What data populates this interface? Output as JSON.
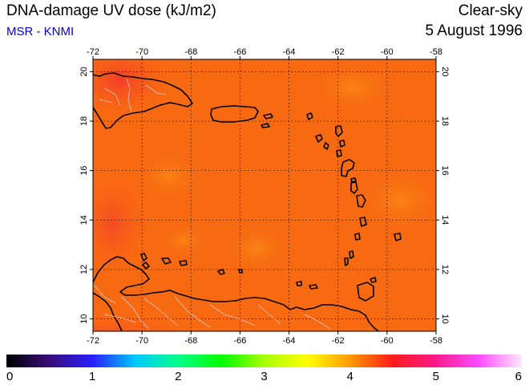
{
  "header": {
    "title": "DNA-damage UV dose (kJ/m2)",
    "subtitle": "MSR - KNMI",
    "condition": "Clear-sky",
    "date": "5 August 1996"
  },
  "map": {
    "lon_range": [
      -72,
      -58
    ],
    "lat_range": [
      9.5,
      20.5
    ],
    "lon_ticks": [
      "-72",
      "-70",
      "-68",
      "-66",
      "-64",
      "-62",
      "-60",
      "-58"
    ],
    "lat_ticks": [
      "10",
      "12",
      "14",
      "16",
      "18",
      "20"
    ],
    "field_colors": {
      "background": "#f86a12",
      "high": "#ee1a3c",
      "low": "#fb8a14"
    }
  },
  "colorbar": {
    "min": 0,
    "max": 6,
    "tick_labels": [
      "0",
      "1",
      "2",
      "3",
      "4",
      "5",
      "6"
    ],
    "stops": [
      "#000000",
      "#3a0d7a",
      "#2a1fff",
      "#00c8ff",
      "#00ff8a",
      "#00ff00",
      "#a8ff00",
      "#ffff00",
      "#ff9a00",
      "#ff1a1a",
      "#ff1a8c",
      "#ff4cff",
      "#ffe8ff"
    ]
  }
}
